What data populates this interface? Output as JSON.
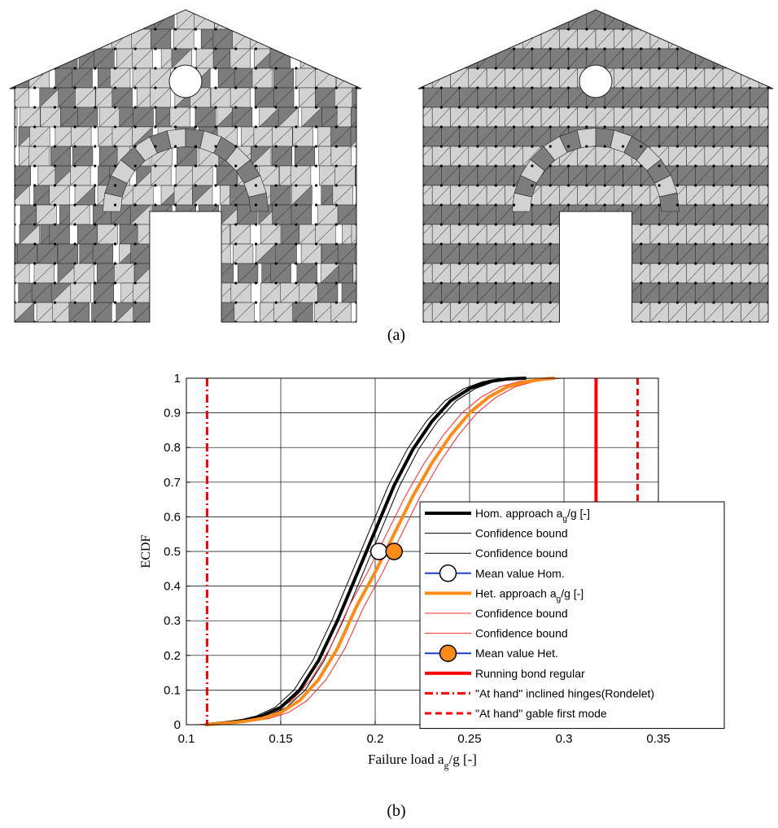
{
  "panel_a": {
    "caption": "(a)",
    "description": "Two finite-element meshes of a gabled masonry facade with a circular window and an arched doorway; left: heterogeneous random brick pattern, right: regular running bond pattern",
    "colors": {
      "dark": "#7d7d7d",
      "light": "#d2d2d2",
      "node": "#000000"
    }
  },
  "panel_b_caption": "(b)",
  "chart_data": {
    "type": "line",
    "title": "",
    "xlabel": "Failure load a_g/g [-]",
    "xlabel_parts": {
      "main": "Failure load a",
      "sub": "g",
      "tail": "/g [-]"
    },
    "ylabel": "ECDF",
    "xlim": [
      0.1,
      0.35
    ],
    "ylim": [
      0,
      1
    ],
    "xticks": [
      "0.1",
      "0.15",
      "0.2",
      "0.25",
      "0.3",
      "0.35"
    ],
    "yticks": [
      "0",
      "0.1",
      "0.2",
      "0.3",
      "0.4",
      "0.5",
      "0.6",
      "0.7",
      "0.8",
      "0.9",
      "1"
    ],
    "grid": true,
    "legend_position": "right",
    "series": [
      {
        "name": "Hom. approach a_g/g [-]",
        "label_main": "Hom. approach a",
        "label_sub": "g",
        "label_tail": "/g [-]",
        "kind": "curve",
        "color": "#000000",
        "width": 4,
        "x": [
          0.11,
          0.12,
          0.13,
          0.14,
          0.15,
          0.16,
          0.17,
          0.18,
          0.19,
          0.2,
          0.21,
          0.22,
          0.23,
          0.24,
          0.25,
          0.26,
          0.27,
          0.28
        ],
        "y": [
          0.0,
          0.005,
          0.012,
          0.025,
          0.05,
          0.1,
          0.185,
          0.3,
          0.43,
          0.56,
          0.69,
          0.795,
          0.875,
          0.935,
          0.97,
          0.99,
          0.998,
          1.0
        ]
      },
      {
        "name": "Confidence bound",
        "label": "Confidence bound",
        "kind": "bound",
        "color": "#000000",
        "width": 1,
        "offset": -0.003,
        "of": 0
      },
      {
        "name": "Confidence bound",
        "label": "Confidence bound",
        "kind": "bound",
        "color": "#000000",
        "width": 1,
        "offset": 0.003,
        "of": 0
      },
      {
        "name": "Mean value Hom.",
        "label": "Mean value Hom.",
        "kind": "marker",
        "line_color": "#1f3fd0",
        "fill": "#ffffff",
        "x": 0.202,
        "y": 0.5
      },
      {
        "name": "Het. approach a_g/g [-]",
        "label_main": "Het. approach a",
        "label_sub": "g",
        "label_tail": "/g [-]",
        "kind": "curve",
        "color": "#ff8c1a",
        "width": 4,
        "x": [
          0.11,
          0.12,
          0.13,
          0.14,
          0.15,
          0.16,
          0.17,
          0.18,
          0.19,
          0.2,
          0.21,
          0.22,
          0.23,
          0.24,
          0.25,
          0.26,
          0.27,
          0.28,
          0.29,
          0.295
        ],
        "y": [
          0.0,
          0.004,
          0.009,
          0.018,
          0.035,
          0.07,
          0.13,
          0.22,
          0.34,
          0.44,
          0.55,
          0.66,
          0.755,
          0.835,
          0.9,
          0.945,
          0.975,
          0.99,
          0.998,
          1.0
        ]
      },
      {
        "name": "Confidence bound",
        "label": "Confidence bound",
        "kind": "bound",
        "color": "#ff2a2a",
        "width": 1,
        "offset": -0.004,
        "of": 4
      },
      {
        "name": "Confidence bound",
        "label": "Confidence bound",
        "kind": "bound",
        "color": "#ff2a2a",
        "width": 1,
        "offset": 0.004,
        "of": 4
      },
      {
        "name": "Mean value Het.",
        "label": "Mean value Het.",
        "kind": "marker",
        "line_color": "#1f3fd0",
        "fill": "#ff8c1a",
        "x": 0.21,
        "y": 0.5
      },
      {
        "name": "Running bond regular",
        "label": "Running bond regular",
        "kind": "vline",
        "color": "#ff0000",
        "width": 4,
        "dash": "",
        "x": 0.317
      },
      {
        "name": "\"At hand\" inclined hinges(Rondelet)",
        "label": "\"At hand\" inclined hinges(Rondelet)",
        "kind": "vline",
        "color": "#ff0000",
        "width": 3,
        "dash": "10,4,2,4",
        "x": 0.111
      },
      {
        "name": "\"At hand\" gable first mode",
        "label": "\"At hand\" gable first mode",
        "kind": "vline",
        "color": "#ff0000",
        "width": 3,
        "dash": "8,5",
        "x": 0.339
      }
    ]
  }
}
